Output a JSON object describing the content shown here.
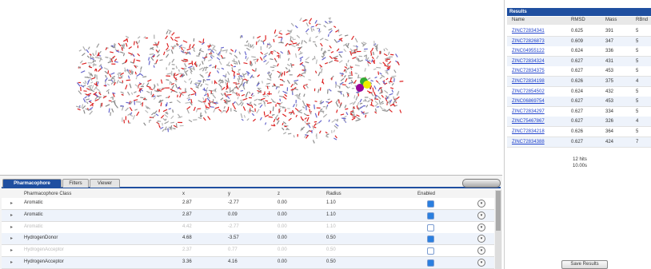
{
  "results": {
    "title": "Results",
    "columns": [
      "Name",
      "RMSD",
      "Mass",
      "RBnd"
    ],
    "rows": [
      [
        "ZINC72834341",
        "0.625",
        "391",
        "5"
      ],
      [
        "ZINC72826873",
        "0.609",
        "347",
        "5"
      ],
      [
        "ZINC04955122",
        "0.624",
        "336",
        "5"
      ],
      [
        "ZINC72834324",
        "0.627",
        "431",
        "5"
      ],
      [
        "ZINC72834375",
        "0.627",
        "453",
        "5"
      ],
      [
        "ZINC72834198",
        "0.626",
        "375",
        "4"
      ],
      [
        "ZINC72854502",
        "0.624",
        "432",
        "5"
      ],
      [
        "ZINC06869754",
        "0.627",
        "453",
        "5"
      ],
      [
        "ZINC72834297",
        "0.627",
        "334",
        "5"
      ],
      [
        "ZINC75467867",
        "0.627",
        "326",
        "4"
      ],
      [
        "ZINC72834218",
        "0.626",
        "364",
        "5"
      ],
      [
        "ZINC72834388",
        "0.627",
        "424",
        "7"
      ]
    ],
    "hits": "12 hits",
    "time": "10.00s",
    "save_button": "Save Results"
  },
  "tabs": [
    "Pharmacophore",
    "Filters",
    "Viewer"
  ],
  "pharmacophore": {
    "columns": [
      "Pharmacophore Class",
      "x",
      "y",
      "z",
      "Radius",
      "Enabled"
    ],
    "rows": [
      {
        "cells": [
          "Aromatic",
          "2.87",
          "-2.77",
          "0.00",
          "1.10"
        ],
        "enabled": true
      },
      {
        "cells": [
          "Aromatic",
          "2.87",
          "0.09",
          "0.00",
          "1.10"
        ],
        "enabled": true
      },
      {
        "cells": [
          "Aromatic",
          "4.42",
          "-2.77",
          "0.00",
          "1.10"
        ],
        "enabled": false
      },
      {
        "cells": [
          "HydrogenDonor",
          "4.68",
          "-3.57",
          "0.00",
          "0.50"
        ],
        "enabled": true
      },
      {
        "cells": [
          "HydrogenAcceptor",
          "2.37",
          "0.77",
          "0.00",
          "0.50"
        ],
        "enabled": false
      },
      {
        "cells": [
          "HydrogenAcceptor",
          "3.36",
          "4.16",
          "0.00",
          "0.50"
        ],
        "enabled": true
      }
    ]
  }
}
